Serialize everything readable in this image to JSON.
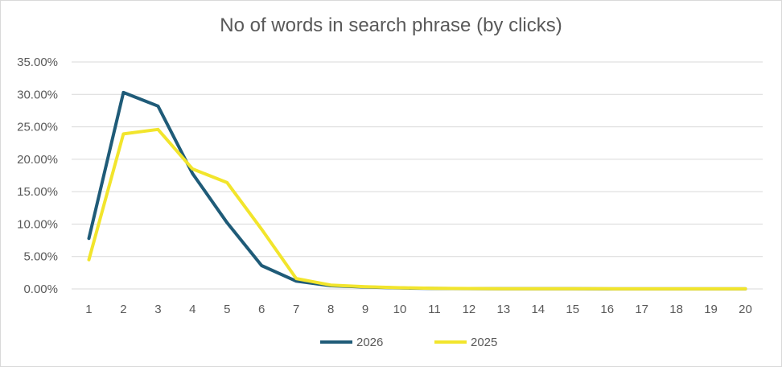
{
  "chart_data": {
    "type": "line",
    "title": "No of words in search phrase (by clicks)",
    "xlabel": "",
    "ylabel": "",
    "x": [
      1,
      2,
      3,
      4,
      5,
      6,
      7,
      8,
      9,
      10,
      11,
      12,
      13,
      14,
      15,
      16,
      17,
      18,
      19,
      20
    ],
    "ylim": [
      0,
      35
    ],
    "yticks": [
      0,
      5,
      10,
      15,
      20,
      25,
      30,
      35
    ],
    "ytick_labels": [
      "0.00%",
      "5.00%",
      "10.00%",
      "15.00%",
      "20.00%",
      "25.00%",
      "30.00%",
      "35.00%"
    ],
    "grid": true,
    "legend_position": "bottom",
    "series": [
      {
        "name": "2026",
        "color": "#1f5b78",
        "values": [
          7.8,
          30.3,
          28.2,
          17.8,
          10.2,
          3.6,
          1.2,
          0.5,
          0.3,
          0.15,
          0.08,
          0.05,
          0.03,
          0.02,
          0.02,
          0.01,
          0.01,
          0.01,
          0.01,
          0.01
        ]
      },
      {
        "name": "2025",
        "color": "#f2e52c",
        "values": [
          4.5,
          23.9,
          24.6,
          18.5,
          16.4,
          9.2,
          1.6,
          0.6,
          0.35,
          0.18,
          0.1,
          0.06,
          0.04,
          0.03,
          0.02,
          0.02,
          0.01,
          0.01,
          0.01,
          0.01
        ]
      }
    ]
  }
}
